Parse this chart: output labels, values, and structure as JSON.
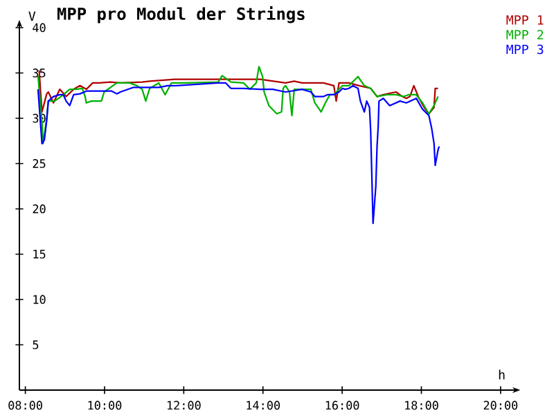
{
  "chart_data": {
    "type": "line",
    "title": "MPP pro Modul der Strings",
    "xlabel": "h",
    "ylabel": "V",
    "xlim": [
      7.85,
      20.3
    ],
    "ylim": [
      0,
      40
    ],
    "xticks": [
      {
        "value": 8,
        "label": "08:00"
      },
      {
        "value": 10,
        "label": "10:00"
      },
      {
        "value": 12,
        "label": "12:00"
      },
      {
        "value": 14,
        "label": "14:00"
      },
      {
        "value": 16,
        "label": "16:00"
      },
      {
        "value": 18,
        "label": "18:00"
      },
      {
        "value": 20,
        "label": "20:00"
      }
    ],
    "yticks": [
      5,
      10,
      15,
      20,
      25,
      30,
      35,
      40
    ],
    "grid": false,
    "legend": "top right",
    "marker": "none",
    "line_style": "solid",
    "series": [
      {
        "name": "MPP 1",
        "color": "#b00000",
        "x": [
          8.35,
          8.38,
          8.42,
          8.54,
          8.58,
          8.71,
          8.87,
          9.03,
          9.22,
          9.38,
          9.54,
          9.7,
          9.86,
          10.15,
          10.4,
          10.95,
          11.14,
          11.78,
          12.87,
          13.35,
          13.61,
          13.93,
          14.57,
          14.79,
          14.99,
          15.53,
          15.79,
          15.85,
          15.92,
          16.17,
          16.43,
          16.72,
          16.88,
          17.04,
          17.36,
          17.52,
          17.62,
          17.71,
          17.81,
          17.94,
          18.1,
          18.19,
          18.32,
          18.35,
          18.42
        ],
        "values": [
          35.3,
          33.2,
          30.7,
          32.7,
          32.9,
          31.7,
          33.2,
          32.4,
          33.2,
          33.6,
          33.2,
          33.9,
          33.9,
          34.0,
          33.9,
          34.0,
          34.1,
          34.3,
          34.3,
          34.3,
          34.3,
          34.3,
          33.9,
          34.1,
          33.9,
          33.9,
          33.6,
          31.9,
          33.9,
          33.9,
          33.6,
          33.3,
          32.4,
          32.6,
          32.9,
          32.4,
          32.2,
          32.4,
          33.6,
          32.2,
          31.0,
          30.5,
          31.2,
          33.3,
          33.3
        ]
      },
      {
        "name": "MPP 2",
        "color": "#00b000",
        "x": [
          8.32,
          8.42,
          8.45,
          8.54,
          8.58,
          8.74,
          8.9,
          9.12,
          9.28,
          9.44,
          9.51,
          9.54,
          9.67,
          9.92,
          9.99,
          10.31,
          10.63,
          10.82,
          10.95,
          11.04,
          11.14,
          11.37,
          11.53,
          11.69,
          12.01,
          12.87,
          12.97,
          13.19,
          13.51,
          13.67,
          13.83,
          13.9,
          13.99,
          14.03,
          14.15,
          14.35,
          14.47,
          14.51,
          14.57,
          14.67,
          14.73,
          14.79,
          15.21,
          15.31,
          15.47,
          15.6,
          15.69,
          15.79,
          15.92,
          16.01,
          16.17,
          16.33,
          16.4,
          16.56,
          16.72,
          16.88,
          17.13,
          17.36,
          17.55,
          17.68,
          17.87,
          18.03,
          18.19,
          18.32,
          18.42
        ],
        "values": [
          34.7,
          29.6,
          27.2,
          30.0,
          31.9,
          31.9,
          32.4,
          33.2,
          33.2,
          33.3,
          32.4,
          31.7,
          31.9,
          31.9,
          32.9,
          33.9,
          33.9,
          33.6,
          33.2,
          31.9,
          33.3,
          33.9,
          32.6,
          33.9,
          33.9,
          34.0,
          34.7,
          34.0,
          33.9,
          33.2,
          33.9,
          35.7,
          34.6,
          32.9,
          31.4,
          30.5,
          30.7,
          33.3,
          33.6,
          32.9,
          30.3,
          33.2,
          33.2,
          31.7,
          30.7,
          31.9,
          32.6,
          32.6,
          33.2,
          33.6,
          33.6,
          34.3,
          34.6,
          33.6,
          33.3,
          32.4,
          32.6,
          32.6,
          32.4,
          32.6,
          32.6,
          31.7,
          30.5,
          31.4,
          32.4
        ]
      },
      {
        "name": "MPP 3",
        "color": "#0000ff",
        "x": [
          8.32,
          8.42,
          8.48,
          8.54,
          8.58,
          8.71,
          8.87,
          8.96,
          9.03,
          9.12,
          9.22,
          9.38,
          9.54,
          10.18,
          10.31,
          10.4,
          10.72,
          11.37,
          11.59,
          11.78,
          12.87,
          13.06,
          13.19,
          13.51,
          13.93,
          14.25,
          14.57,
          14.99,
          15.21,
          15.31,
          15.53,
          15.63,
          15.79,
          15.92,
          16.01,
          16.08,
          16.17,
          16.27,
          16.4,
          16.46,
          16.56,
          16.62,
          16.69,
          16.72,
          16.78,
          16.85,
          16.88,
          16.91,
          16.93,
          17.04,
          17.2,
          17.46,
          17.62,
          17.87,
          18.03,
          18.19,
          18.26,
          18.32,
          18.35,
          18.42,
          18.45
        ],
        "values": [
          33.2,
          27.2,
          27.6,
          29.8,
          31.9,
          32.4,
          32.6,
          32.6,
          31.9,
          31.4,
          32.6,
          32.7,
          33.0,
          33.0,
          32.7,
          32.9,
          33.4,
          33.4,
          33.6,
          33.6,
          33.9,
          33.9,
          33.3,
          33.3,
          33.2,
          33.2,
          32.9,
          33.2,
          32.9,
          32.4,
          32.4,
          32.6,
          32.6,
          32.9,
          33.3,
          33.2,
          33.3,
          33.6,
          33.3,
          31.9,
          30.7,
          31.9,
          31.2,
          28.6,
          18.4,
          22.5,
          26.8,
          29.1,
          31.9,
          32.2,
          31.4,
          31.9,
          31.7,
          32.2,
          31.0,
          30.3,
          28.9,
          27.2,
          24.8,
          26.5,
          26.9
        ]
      }
    ]
  }
}
